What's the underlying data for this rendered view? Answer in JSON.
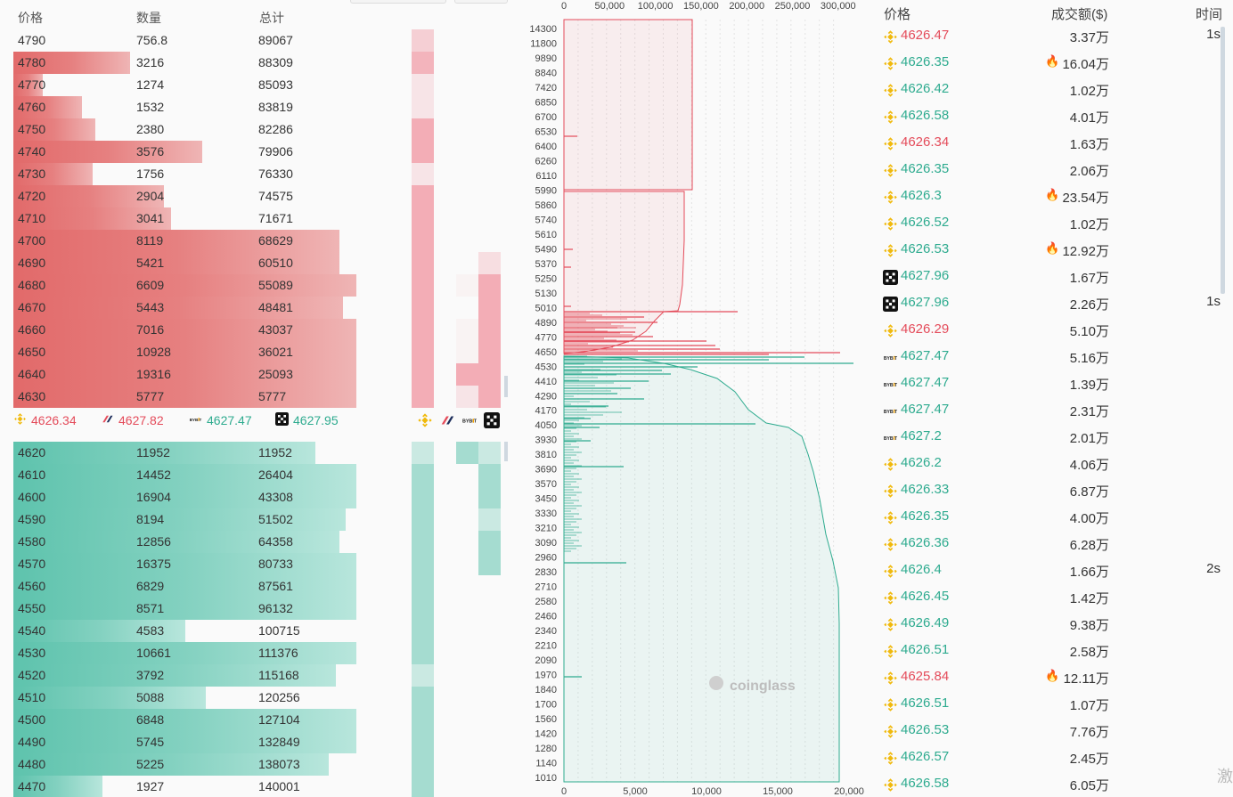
{
  "orderbook": {
    "headers": {
      "price": "价格",
      "qty": "数量",
      "total": "总计"
    },
    "asks": [
      {
        "price": "4790",
        "qty": "756.8",
        "total": "89067",
        "bar": 0,
        "m": [
          0.3
        ]
      },
      {
        "price": "4780",
        "qty": "3216",
        "total": "88309",
        "bar": 0.34,
        "m": [
          0.5
        ]
      },
      {
        "price": "4770",
        "qty": "1274",
        "total": "85093",
        "bar": 0.085,
        "m": [
          0.15
        ]
      },
      {
        "price": "4760",
        "qty": "1532",
        "total": "83819",
        "bar": 0.2,
        "m": [
          0.15
        ]
      },
      {
        "price": "4750",
        "qty": "2380",
        "total": "82286",
        "bar": 0.24,
        "m": [
          0.55
        ]
      },
      {
        "price": "4740",
        "qty": "3576",
        "total": "79906",
        "bar": 0.55,
        "m": [
          0.55
        ]
      },
      {
        "price": "4730",
        "qty": "1756",
        "total": "76330",
        "bar": 0.23,
        "m": [
          0.15
        ]
      },
      {
        "price": "4720",
        "qty": "2904",
        "total": "74575",
        "bar": 0.44,
        "m": [
          0.55
        ]
      },
      {
        "price": "4710",
        "qty": "3041",
        "total": "71671",
        "bar": 0.46,
        "m": [
          0.55
        ]
      },
      {
        "price": "4700",
        "qty": "8119",
        "total": "68629",
        "bar": 0.95,
        "m": [
          0.55,
          0,
          0,
          0
        ]
      },
      {
        "price": "4690",
        "qty": "5421",
        "total": "60510",
        "bar": 0.95,
        "m": [
          0.55,
          0,
          0,
          0.2
        ]
      },
      {
        "price": "4680",
        "qty": "6609",
        "total": "55089",
        "bar": 1,
        "m": [
          0.55,
          0,
          0.05,
          0.55
        ]
      },
      {
        "price": "4670",
        "qty": "5443",
        "total": "48481",
        "bar": 0.96,
        "m": [
          0.55,
          0,
          0,
          0.55
        ]
      },
      {
        "price": "4660",
        "qty": "7016",
        "total": "43037",
        "bar": 1,
        "m": [
          0.55,
          0,
          0.05,
          0.55
        ]
      },
      {
        "price": "4650",
        "qty": "10928",
        "total": "36021",
        "bar": 1,
        "m": [
          0.55,
          0,
          0.05,
          0.55
        ]
      },
      {
        "price": "4640",
        "qty": "19316",
        "total": "25093",
        "bar": 1,
        "m": [
          0.55,
          0,
          0.55,
          0.55
        ]
      },
      {
        "price": "4630",
        "qty": "5777",
        "total": "5777",
        "bar": 1,
        "m": [
          0.55,
          0,
          0.15,
          0.55
        ]
      }
    ],
    "bids": [
      {
        "price": "4620",
        "qty": "11952",
        "total": "11952",
        "bar": 0.88,
        "m": [
          0.3,
          0,
          0.55,
          0.3
        ]
      },
      {
        "price": "4610",
        "qty": "14452",
        "total": "26404",
        "bar": 1,
        "m": [
          0.55,
          0,
          0,
          0.55
        ]
      },
      {
        "price": "4600",
        "qty": "16904",
        "total": "43308",
        "bar": 1,
        "m": [
          0.55,
          0,
          0,
          0.55
        ]
      },
      {
        "price": "4590",
        "qty": "8194",
        "total": "51502",
        "bar": 0.97,
        "m": [
          0.55,
          0,
          0,
          0.3
        ]
      },
      {
        "price": "4580",
        "qty": "12856",
        "total": "64358",
        "bar": 0.95,
        "m": [
          0.55,
          0,
          0,
          0.55
        ]
      },
      {
        "price": "4570",
        "qty": "16375",
        "total": "80733",
        "bar": 1,
        "m": [
          0.55,
          0,
          0,
          0.55
        ]
      },
      {
        "price": "4560",
        "qty": "6829",
        "total": "87561",
        "bar": 1,
        "m": [
          0.55
        ]
      },
      {
        "price": "4550",
        "qty": "8571",
        "total": "96132",
        "bar": 1,
        "m": [
          0.55
        ]
      },
      {
        "price": "4540",
        "qty": "4583",
        "total": "100715",
        "bar": 0.5,
        "m": [
          0.55
        ]
      },
      {
        "price": "4530",
        "qty": "10661",
        "total": "111376",
        "bar": 1,
        "m": [
          0.55
        ]
      },
      {
        "price": "4520",
        "qty": "3792",
        "total": "115168",
        "bar": 0.94,
        "m": [
          0.3
        ]
      },
      {
        "price": "4510",
        "qty": "5088",
        "total": "120256",
        "bar": 0.56,
        "m": [
          0.55
        ]
      },
      {
        "price": "4500",
        "qty": "6848",
        "total": "127104",
        "bar": 1,
        "m": [
          0.55
        ]
      },
      {
        "price": "4490",
        "qty": "5745",
        "total": "132849",
        "bar": 1,
        "m": [
          0.55
        ]
      },
      {
        "price": "4480",
        "qty": "5225",
        "total": "138073",
        "bar": 0.92,
        "m": [
          0.55
        ]
      },
      {
        "price": "4470",
        "qty": "1927",
        "total": "140001",
        "bar": 0.26,
        "m": [
          0.55
        ]
      }
    ],
    "exchange_prices": [
      {
        "icon": "binance-icon",
        "price": "4626.34",
        "color": "#e44b5a"
      },
      {
        "icon": "bitget-icon",
        "price": "4627.82",
        "color": "#e44b5a"
      },
      {
        "icon": "bybit-icon",
        "price": "4627.47",
        "color": "#2eab8f"
      },
      {
        "icon": "okx-icon",
        "price": "4627.95",
        "color": "#2eab8f"
      }
    ],
    "exchange_icons": [
      "binance-icon",
      "bitget-icon",
      "bybit-icon",
      "okx-icon"
    ]
  },
  "depth_chart": {
    "top_axis": [
      "0",
      "50,000",
      "100,000",
      "150,000",
      "200,000",
      "250,000",
      "300,000"
    ],
    "bottom_axis": [
      "0",
      "5,000",
      "10,000",
      "15,000",
      "20,000"
    ],
    "y_labels": [
      "14300",
      "11800",
      "9890",
      "8840",
      "7420",
      "6850",
      "6700",
      "6530",
      "6400",
      "6260",
      "6110",
      "5990",
      "5860",
      "5740",
      "5610",
      "5490",
      "5370",
      "5250",
      "5130",
      "5010",
      "4890",
      "4770",
      "4650",
      "4530",
      "4410",
      "4290",
      "4170",
      "4050",
      "3930",
      "3810",
      "3690",
      "3570",
      "3450",
      "3330",
      "3210",
      "3090",
      "2960",
      "2830",
      "2710",
      "2580",
      "2460",
      "2340",
      "2210",
      "2090",
      "1970",
      "1840",
      "1700",
      "1560",
      "1420",
      "1280",
      "1140",
      "1010"
    ],
    "watermark": "coinglass"
  },
  "trades": {
    "headers": {
      "price": "价格",
      "amount": "成交额($)",
      "time": "时间"
    },
    "rows": [
      {
        "ex": "binance-icon",
        "price": "4626.47",
        "side": "dn",
        "amount": "3.37万",
        "hot": false,
        "time": "1s"
      },
      {
        "ex": "binance-icon",
        "price": "4626.35",
        "side": "up",
        "amount": "16.04万",
        "hot": true,
        "time": ""
      },
      {
        "ex": "binance-icon",
        "price": "4626.42",
        "side": "up",
        "amount": "1.02万",
        "hot": false,
        "time": ""
      },
      {
        "ex": "binance-icon",
        "price": "4626.58",
        "side": "up",
        "amount": "4.01万",
        "hot": false,
        "time": ""
      },
      {
        "ex": "binance-icon",
        "price": "4626.34",
        "side": "dn",
        "amount": "1.63万",
        "hot": false,
        "time": ""
      },
      {
        "ex": "binance-icon",
        "price": "4626.35",
        "side": "up",
        "amount": "2.06万",
        "hot": false,
        "time": ""
      },
      {
        "ex": "binance-icon",
        "price": "4626.3",
        "side": "up",
        "amount": "23.54万",
        "hot": true,
        "time": ""
      },
      {
        "ex": "binance-icon",
        "price": "4626.52",
        "side": "up",
        "amount": "1.02万",
        "hot": false,
        "time": ""
      },
      {
        "ex": "binance-icon",
        "price": "4626.53",
        "side": "up",
        "amount": "12.92万",
        "hot": true,
        "time": ""
      },
      {
        "ex": "okx-icon",
        "price": "4627.96",
        "side": "up",
        "amount": "1.67万",
        "hot": false,
        "time": ""
      },
      {
        "ex": "okx-icon",
        "price": "4627.96",
        "side": "up",
        "amount": "2.26万",
        "hot": false,
        "time": "1s"
      },
      {
        "ex": "binance-icon",
        "price": "4626.29",
        "side": "dn",
        "amount": "5.10万",
        "hot": false,
        "time": ""
      },
      {
        "ex": "bybit-icon",
        "price": "4627.47",
        "side": "up",
        "amount": "5.16万",
        "hot": false,
        "time": ""
      },
      {
        "ex": "bybit-icon",
        "price": "4627.47",
        "side": "up",
        "amount": "1.39万",
        "hot": false,
        "time": ""
      },
      {
        "ex": "bybit-icon",
        "price": "4627.47",
        "side": "up",
        "amount": "2.31万",
        "hot": false,
        "time": ""
      },
      {
        "ex": "bybit-icon",
        "price": "4627.2",
        "side": "up",
        "amount": "2.01万",
        "hot": false,
        "time": ""
      },
      {
        "ex": "binance-icon",
        "price": "4626.2",
        "side": "up",
        "amount": "4.06万",
        "hot": false,
        "time": ""
      },
      {
        "ex": "binance-icon",
        "price": "4626.33",
        "side": "up",
        "amount": "6.87万",
        "hot": false,
        "time": ""
      },
      {
        "ex": "binance-icon",
        "price": "4626.35",
        "side": "up",
        "amount": "4.00万",
        "hot": false,
        "time": ""
      },
      {
        "ex": "binance-icon",
        "price": "4626.36",
        "side": "up",
        "amount": "6.28万",
        "hot": false,
        "time": ""
      },
      {
        "ex": "binance-icon",
        "price": "4626.4",
        "side": "up",
        "amount": "1.66万",
        "hot": false,
        "time": "2s"
      },
      {
        "ex": "binance-icon",
        "price": "4626.45",
        "side": "up",
        "amount": "1.42万",
        "hot": false,
        "time": ""
      },
      {
        "ex": "binance-icon",
        "price": "4626.49",
        "side": "up",
        "amount": "9.38万",
        "hot": false,
        "time": ""
      },
      {
        "ex": "binance-icon",
        "price": "4626.51",
        "side": "up",
        "amount": "2.58万",
        "hot": false,
        "time": ""
      },
      {
        "ex": "binance-icon",
        "price": "4625.84",
        "side": "dn",
        "amount": "12.11万",
        "hot": true,
        "time": ""
      },
      {
        "ex": "binance-icon",
        "price": "4626.51",
        "side": "up",
        "amount": "1.07万",
        "hot": false,
        "time": ""
      },
      {
        "ex": "binance-icon",
        "price": "4626.53",
        "side": "up",
        "amount": "7.76万",
        "hot": false,
        "time": ""
      },
      {
        "ex": "binance-icon",
        "price": "4626.57",
        "side": "up",
        "amount": "2.45万",
        "hot": false,
        "time": ""
      },
      {
        "ex": "binance-icon",
        "price": "4626.58",
        "side": "up",
        "amount": "6.05万",
        "hot": false,
        "time": ""
      }
    ],
    "watermark": "激"
  },
  "colors": {
    "ask": "#e26a6a",
    "bid": "#5ec3ad",
    "up": "#2eab8f",
    "down": "#e44b5a",
    "binance": "#f0b90b"
  }
}
